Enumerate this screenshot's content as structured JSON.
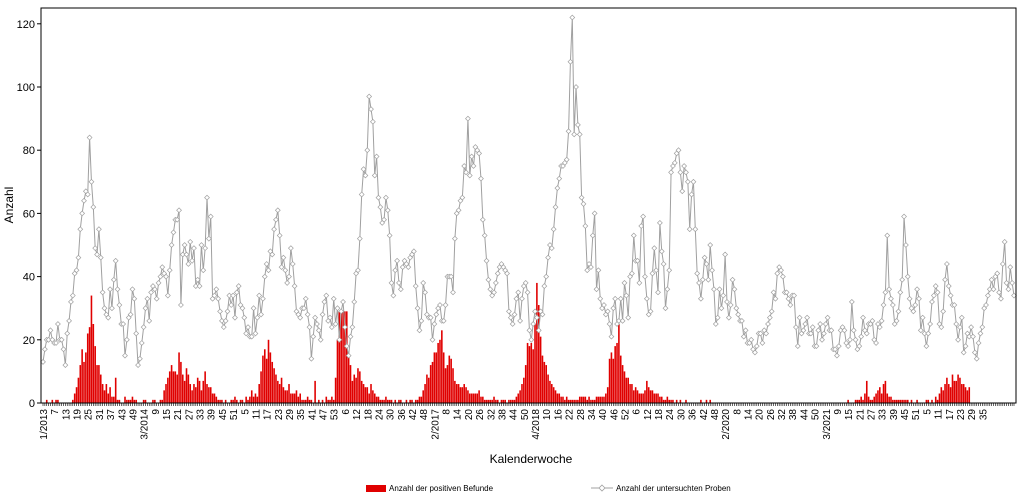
{
  "chart_data": {
    "type": "bar+line",
    "title": "",
    "xlabel": "Kalenderwoche",
    "ylabel": "Anzahl",
    "ylim": [
      0,
      125
    ],
    "y_ticks": [
      0,
      20,
      40,
      60,
      80,
      100,
      120
    ],
    "grid": false,
    "legend_position": "bottom",
    "x_tick_labels": [
      "1/2013",
      "7",
      "13",
      "19",
      "25",
      "31",
      "37",
      "43",
      "49",
      "3/2014",
      "9",
      "15",
      "21",
      "27",
      "33",
      "39",
      "45",
      "51",
      "5",
      "11",
      "17",
      "23",
      "29",
      "35",
      "41",
      "47",
      "53",
      "6",
      "12",
      "18",
      "24",
      "30",
      "36",
      "42",
      "48",
      "2/2017",
      "8",
      "14",
      "20",
      "26",
      "32",
      "38",
      "44",
      "50",
      "4/2018",
      "10",
      "16",
      "22",
      "28",
      "34",
      "40",
      "46",
      "52",
      "6",
      "12",
      "18",
      "24",
      "30",
      "36",
      "42",
      "48",
      "2/2020",
      "8",
      "14",
      "20",
      "26",
      "32",
      "38",
      "44",
      "50",
      "3/2021",
      "9",
      "15",
      "21",
      "27",
      "33",
      "39",
      "45",
      "51",
      "5",
      "11",
      "17",
      "23",
      "29",
      "35"
    ],
    "series": [
      {
        "name": "Anzahl der positiven Befunde",
        "kind": "bar",
        "color": "#e00000",
        "values": [
          0,
          0,
          1,
          0,
          0,
          1,
          0,
          1,
          1,
          0,
          0,
          0,
          0,
          0,
          0,
          0,
          1,
          3,
          5,
          8,
          12,
          17,
          13,
          16,
          22,
          24,
          34,
          25,
          18,
          12,
          12,
          9,
          6,
          4,
          6,
          3,
          5,
          2,
          2,
          8,
          1,
          1,
          0,
          0,
          2,
          1,
          1,
          1,
          2,
          1,
          1,
          0,
          0,
          0,
          1,
          1,
          0,
          0,
          0,
          1,
          1,
          0,
          0,
          1,
          1,
          4,
          6,
          8,
          10,
          12,
          10,
          10,
          9,
          16,
          13,
          9,
          7,
          11,
          9,
          6,
          4,
          6,
          5,
          8,
          7,
          4,
          7,
          10,
          6,
          5,
          5,
          3,
          3,
          2,
          1,
          1,
          1,
          0,
          1,
          0,
          0,
          1,
          1,
          2,
          1,
          0,
          1,
          1,
          0,
          2,
          1,
          2,
          4,
          2,
          3,
          2,
          6,
          10,
          15,
          17,
          14,
          20,
          16,
          13,
          11,
          9,
          7,
          6,
          8,
          5,
          4,
          4,
          6,
          3,
          3,
          3,
          4,
          2,
          3,
          1,
          1,
          1,
          2,
          1,
          1,
          0,
          7,
          0,
          1,
          0,
          1,
          0,
          2,
          1,
          1,
          2,
          1,
          8,
          20,
          29,
          29,
          29,
          29,
          29,
          15,
          12,
          7,
          9,
          8,
          11,
          10,
          7,
          6,
          5,
          5,
          3,
          6,
          4,
          3,
          2,
          2,
          1,
          1,
          1,
          2,
          1,
          1,
          1,
          0,
          1,
          0,
          1,
          1,
          0,
          0,
          1,
          0,
          1,
          1,
          0,
          1,
          1,
          2,
          2,
          4,
          6,
          9,
          8,
          12,
          13,
          16,
          16,
          19,
          20,
          23,
          16,
          11,
          12,
          15,
          14,
          11,
          7,
          6,
          6,
          5,
          5,
          6,
          5,
          4,
          3,
          3,
          3,
          3,
          3,
          4,
          2,
          2,
          1,
          1,
          1,
          1,
          1,
          2,
          1,
          1,
          0,
          1,
          1,
          1,
          0,
          1,
          1,
          1,
          1,
          2,
          3,
          4,
          6,
          8,
          12,
          19,
          18,
          19,
          17,
          25,
          38,
          31,
          21,
          15,
          13,
          12,
          9,
          7,
          6,
          5,
          4,
          3,
          3,
          2,
          2,
          1,
          2,
          1,
          1,
          1,
          1,
          1,
          1,
          2,
          2,
          2,
          2,
          1,
          2,
          1,
          1,
          1,
          2,
          2,
          2,
          2,
          2,
          3,
          5,
          14,
          16,
          14,
          18,
          19,
          25,
          15,
          12,
          10,
          8,
          8,
          6,
          6,
          4,
          5,
          4,
          3,
          3,
          3,
          4,
          7,
          5,
          4,
          4,
          3,
          3,
          3,
          2,
          2,
          1,
          1,
          2,
          1,
          1,
          1,
          0,
          1,
          0,
          1,
          0,
          0,
          1,
          0,
          0,
          0,
          0,
          0,
          0,
          0,
          1,
          0,
          0,
          1,
          0,
          1,
          0,
          0,
          0,
          0,
          0,
          0,
          0,
          0,
          0,
          0,
          0,
          0,
          0,
          0,
          0,
          0,
          0,
          0,
          0,
          0,
          0,
          0,
          0,
          0,
          0,
          0,
          0,
          0,
          0,
          0,
          0,
          0,
          0,
          0,
          0,
          0,
          0,
          0,
          0,
          0,
          0,
          0,
          0,
          0,
          0,
          0,
          0,
          0,
          0,
          0,
          0,
          0,
          0,
          0,
          0,
          0,
          0,
          0,
          0,
          0,
          0,
          0,
          0,
          0,
          0,
          0,
          0,
          0,
          0,
          0,
          0,
          0,
          0,
          1,
          0,
          0,
          0,
          1,
          1,
          1,
          2,
          1,
          3,
          7,
          2,
          1,
          1,
          2,
          3,
          4,
          5,
          3,
          6,
          7,
          3,
          2,
          2,
          1,
          1,
          1,
          1,
          1,
          1,
          1,
          1,
          1,
          0,
          1,
          0,
          0,
          1,
          0,
          0,
          0,
          0,
          1,
          1,
          0,
          1,
          0,
          2,
          1,
          3,
          5,
          4,
          6,
          8,
          6,
          5,
          9,
          7,
          7,
          9,
          8,
          6,
          6,
          5,
          4,
          5
        ]
      },
      {
        "name": "Anzahl der untersuchten Proben",
        "kind": "line",
        "color": "#a0a0a0",
        "values": [
          13,
          17,
          20,
          20,
          23,
          20,
          19,
          19,
          25,
          20,
          20,
          17,
          12,
          22,
          26,
          32,
          34,
          41,
          42,
          46,
          55,
          60,
          64,
          67,
          66,
          84,
          70,
          62,
          49,
          47,
          55,
          46,
          35,
          30,
          28,
          27,
          36,
          30,
          39,
          45,
          36,
          31,
          25,
          25,
          15,
          20,
          27,
          28,
          36,
          33,
          22,
          12,
          14,
          19,
          24,
          30,
          33,
          26,
          35,
          37,
          36,
          33,
          38,
          40,
          43,
          41,
          40,
          34,
          42,
          50,
          54,
          58,
          58,
          61,
          31,
          47,
          50,
          47,
          44,
          51,
          45,
          49,
          37,
          39,
          37,
          50,
          42,
          49,
          65,
          52,
          59,
          33,
          34,
          36,
          33,
          29,
          26,
          24,
          26,
          29,
          34,
          31,
          34,
          27,
          35,
          37,
          31,
          30,
          27,
          22,
          24,
          21,
          21,
          30,
          22,
          27,
          34,
          28,
          33,
          40,
          44,
          42,
          48,
          47,
          55,
          58,
          61,
          53,
          43,
          46,
          42,
          38,
          40,
          49,
          44,
          37,
          29,
          28,
          27,
          30,
          30,
          33,
          28,
          24,
          14,
          21,
          27,
          25,
          23,
          20,
          28,
          32,
          34,
          26,
          27,
          24,
          33,
          25,
          30,
          20,
          29,
          32,
          24,
          18,
          15,
          21,
          24,
          32,
          41,
          42,
          52,
          66,
          74,
          72,
          80,
          97,
          93,
          89,
          72,
          78,
          65,
          62,
          57,
          58,
          65,
          61,
          53,
          38,
          34,
          42,
          45,
          38,
          36,
          43,
          45,
          44,
          43,
          46,
          47,
          48,
          37,
          30,
          23,
          26,
          38,
          35,
          28,
          27,
          27,
          20,
          25,
          28,
          30,
          31,
          26,
          26,
          31,
          40,
          40,
          40,
          35,
          52,
          60,
          61,
          64,
          65,
          75,
          73,
          90,
          72,
          78,
          75,
          81,
          80,
          79,
          71,
          58,
          53,
          45,
          39,
          36,
          34,
          35,
          38,
          41,
          43,
          44,
          43,
          42,
          41,
          29,
          27,
          25,
          28,
          33,
          35,
          26,
          33,
          37,
          38,
          35,
          23,
          20,
          25,
          29,
          27,
          23,
          29,
          28,
          37,
          40,
          46,
          50,
          49,
          55,
          62,
          68,
          71,
          75,
          75,
          76,
          77,
          86,
          108,
          122,
          85,
          100,
          88,
          85,
          65,
          63,
          56,
          42,
          44,
          43,
          53,
          60,
          36,
          42,
          33,
          30,
          31,
          28,
          29,
          25,
          21,
          30,
          33,
          25,
          26,
          33,
          26,
          38,
          34,
          27,
          40,
          41,
          53,
          45,
          45,
          38,
          56,
          59,
          40,
          33,
          28,
          29,
          41,
          49,
          42,
          35,
          57,
          48,
          44,
          30,
          36,
          42,
          73,
          75,
          76,
          79,
          80,
          73,
          67,
          75,
          73,
          70,
          55,
          66,
          70,
          55,
          41,
          38,
          33,
          39,
          46,
          44,
          39,
          50,
          42,
          36,
          25,
          27,
          36,
          30,
          34,
          47,
          32,
          27,
          31,
          39,
          36,
          30,
          28,
          26,
          26,
          21,
          23,
          19,
          19,
          20,
          17,
          16,
          18,
          22,
          22,
          19,
          23,
          22,
          25,
          27,
          29,
          35,
          33,
          41,
          43,
          42,
          40,
          35,
          35,
          33,
          31,
          34,
          34,
          24,
          18,
          27,
          22,
          23,
          25,
          27,
          22,
          22,
          24,
          18,
          18,
          23,
          25,
          20,
          22,
          25,
          27,
          23,
          23,
          17,
          17,
          15,
          18,
          23,
          24,
          23,
          19,
          18,
          20,
          32,
          23,
          20,
          17,
          18,
          21,
          27,
          23,
          22,
          25,
          25,
          26,
          20,
          19,
          25,
          24,
          26,
          31,
          35,
          53,
          36,
          33,
          31,
          25,
          26,
          29,
          35,
          39,
          59,
          50,
          40,
          33,
          30,
          29,
          31,
          36,
          33,
          23,
          27,
          22,
          18,
          22,
          25,
          32,
          34,
          37,
          35,
          25,
          24,
          29,
          39,
          44,
          37,
          34,
          31,
          31,
          25,
          20,
          24,
          27,
          16,
          18,
          22,
          21,
          24,
          21,
          16,
          14,
          19,
          22,
          24,
          30,
          31,
          34,
          36,
          39,
          36,
          40,
          41,
          35,
          33,
          44,
          51,
          38,
          36,
          43,
          38,
          34
        ]
      }
    ]
  }
}
